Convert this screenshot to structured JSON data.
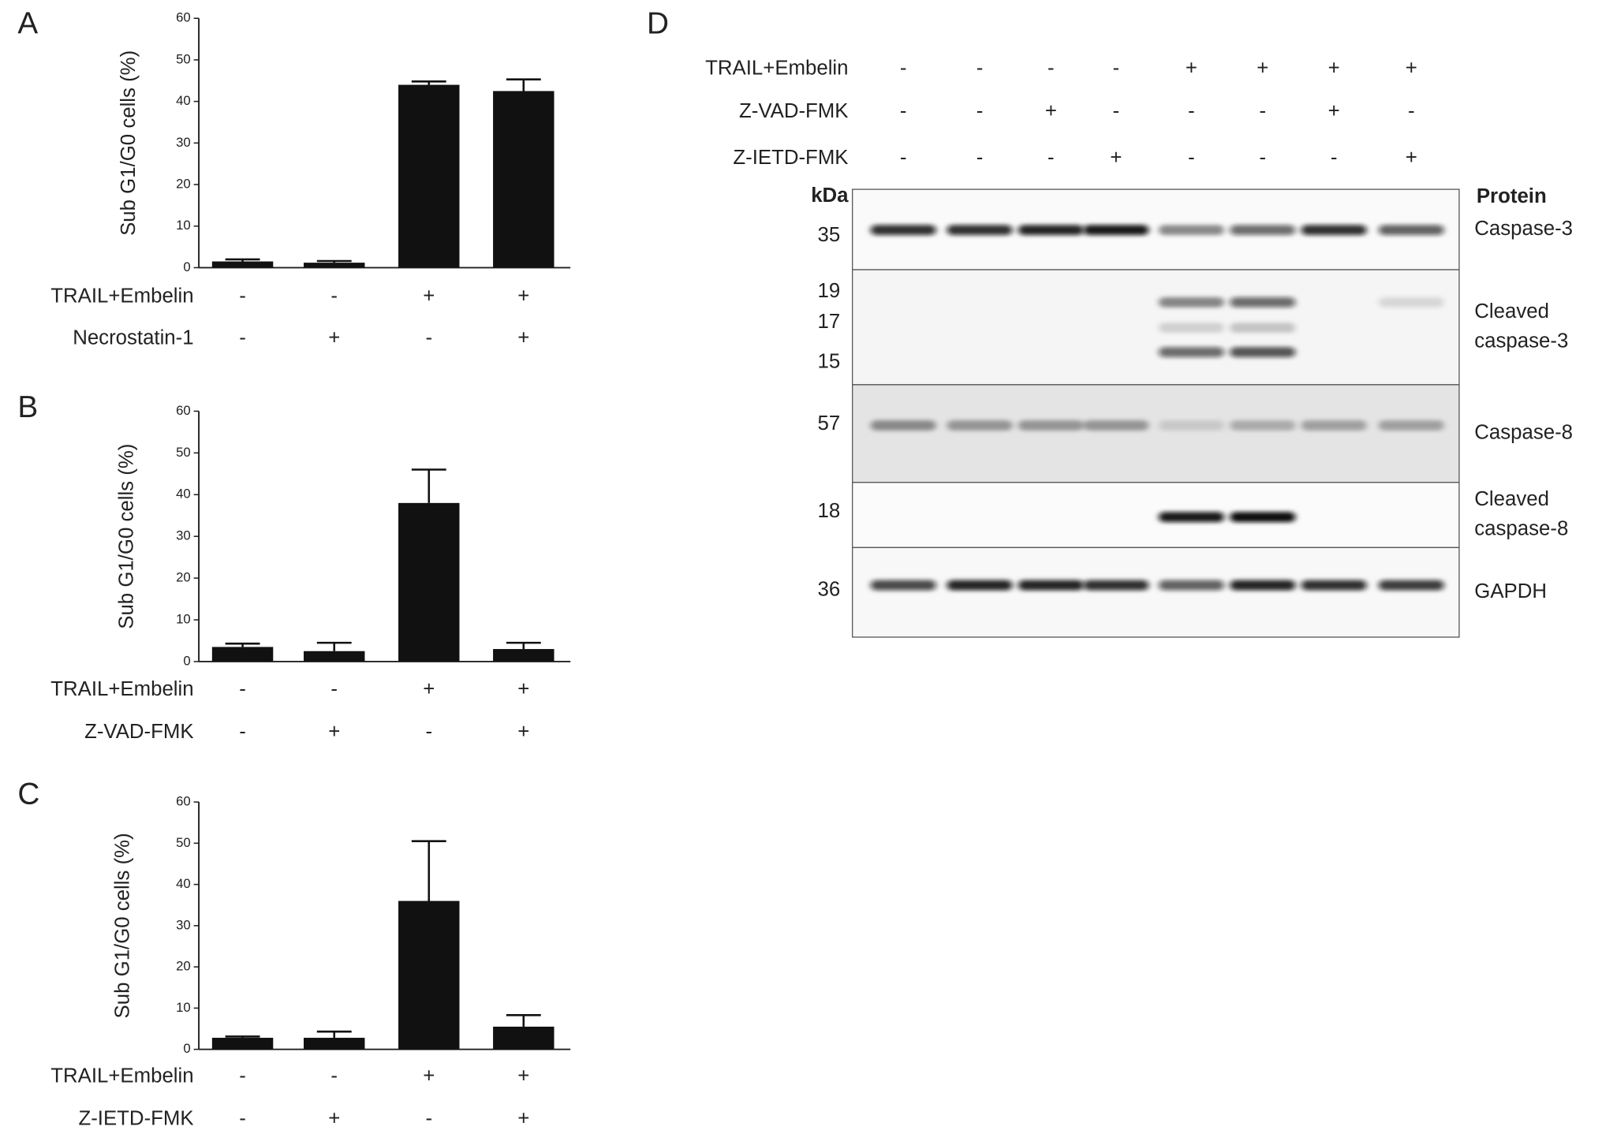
{
  "chart_data": [
    {
      "type": "bar",
      "panel": "A",
      "y_label": "Sub G1/G0 cells (%)",
      "ylim": [
        0,
        60
      ],
      "yticks": [
        0,
        10,
        20,
        30,
        40,
        50,
        60
      ],
      "color": "#111111",
      "values": [
        1.5,
        1.2,
        44,
        42.5
      ],
      "errors": [
        0.5,
        0.4,
        0.8,
        2.8
      ],
      "conditions": [
        {
          "label": "TRAIL+Embelin",
          "signs": [
            "-",
            "-",
            "+",
            "+"
          ]
        },
        {
          "label": "Necrostatin-1",
          "signs": [
            "-",
            "+",
            "-",
            "+"
          ]
        }
      ]
    },
    {
      "type": "bar",
      "panel": "B",
      "y_label": "Sub G1/G0 cells (%)",
      "ylim": [
        0,
        60
      ],
      "yticks": [
        0,
        10,
        20,
        30,
        40,
        50,
        60
      ],
      "color": "#111111",
      "values": [
        3.5,
        2.5,
        38,
        3
      ],
      "errors": [
        0.8,
        2,
        8,
        1.5
      ],
      "conditions": [
        {
          "label": "TRAIL+Embelin",
          "signs": [
            "-",
            "-",
            "+",
            "+"
          ]
        },
        {
          "label": "Z-VAD-FMK",
          "signs": [
            "-",
            "+",
            "-",
            "+"
          ]
        }
      ]
    },
    {
      "type": "bar",
      "panel": "C",
      "y_label": "Sub G1/G0 cells (%)",
      "ylim": [
        0,
        60
      ],
      "yticks": [
        0,
        10,
        20,
        30,
        40,
        50,
        60
      ],
      "color": "#111111",
      "values": [
        2.8,
        2.8,
        36,
        5.5
      ],
      "errors": [
        0.3,
        1.5,
        14.5,
        2.8
      ],
      "conditions": [
        {
          "label": "TRAIL+Embelin",
          "signs": [
            "-",
            "-",
            "+",
            "+"
          ]
        },
        {
          "label": "Z-IETD-FMK",
          "signs": [
            "-",
            "+",
            "-",
            "+"
          ]
        }
      ]
    }
  ],
  "blot": {
    "panel": "D",
    "kda_header": "kDa",
    "protein_header": "Protein",
    "treatments": [
      {
        "label": "TRAIL+Embelin",
        "signs": [
          "-",
          "-",
          "-",
          "-",
          "+",
          "+",
          "+",
          "+"
        ]
      },
      {
        "label": "Z-VAD-FMK",
        "signs": [
          "-",
          "-",
          "+",
          "-",
          "-",
          "-",
          "+",
          "-"
        ]
      },
      {
        "label": "Z-IETD-FMK",
        "signs": [
          "-",
          "-",
          "-",
          "+",
          "-",
          "-",
          "-",
          "+"
        ]
      }
    ],
    "sections": [
      {
        "protein": [
          "Caspase-3"
        ],
        "markers": [
          {
            "kda": 35,
            "intensity": [
              0.85,
              0.85,
              0.9,
              0.95,
              0.45,
              0.6,
              0.85,
              0.65
            ]
          }
        ]
      },
      {
        "protein": [
          "Cleaved",
          "caspase-3"
        ],
        "markers": [
          {
            "kda": 19,
            "intensity": [
              0,
              0,
              0,
              0,
              0.45,
              0.6,
              0,
              0.12
            ]
          },
          {
            "kda": 17,
            "intensity": [
              0,
              0,
              0,
              0,
              0.15,
              0.2,
              0,
              0
            ]
          },
          {
            "kda": 15,
            "intensity": [
              0,
              0,
              0,
              0,
              0.6,
              0.7,
              0,
              0
            ]
          }
        ]
      },
      {
        "protein": [
          "Caspase-8"
        ],
        "markers": [
          {
            "kda": 57,
            "intensity": [
              0.4,
              0.35,
              0.35,
              0.35,
              0.12,
              0.25,
              0.3,
              0.3
            ]
          }
        ]
      },
      {
        "protein": [
          "Cleaved",
          "caspase-8"
        ],
        "markers": [
          {
            "kda": 18,
            "intensity": [
              0,
              0,
              0,
              0,
              0.95,
              1,
              0,
              0
            ]
          }
        ]
      },
      {
        "protein": [
          "GAPDH"
        ],
        "markers": [
          {
            "kda": 36,
            "intensity": [
              0.75,
              0.9,
              0.9,
              0.85,
              0.65,
              0.9,
              0.85,
              0.8
            ]
          }
        ]
      }
    ]
  }
}
